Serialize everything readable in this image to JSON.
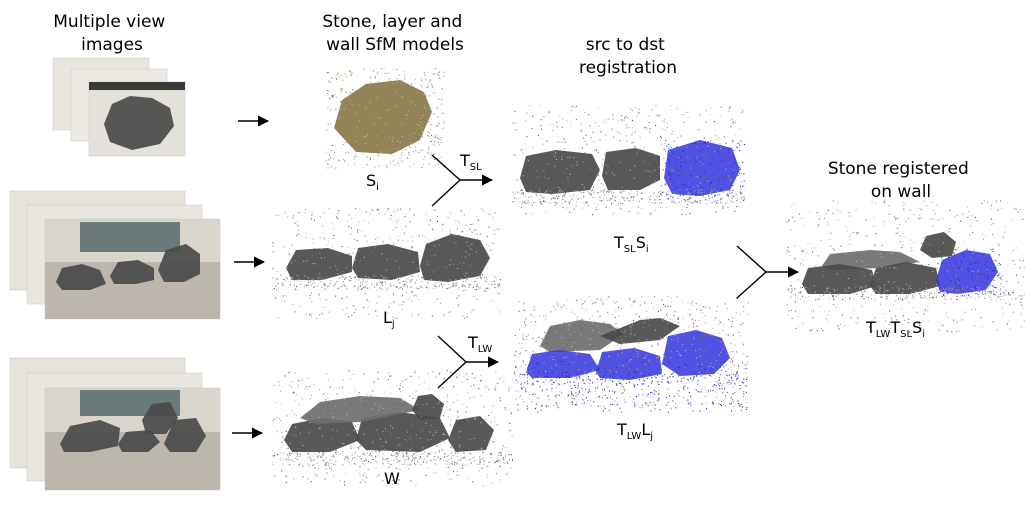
{
  "headers": {
    "images": [
      "Multiple view",
      "images"
    ],
    "models": [
      "Stone, layer and",
      "wall SfM models"
    ],
    "registration": [
      "src to dst",
      "registration"
    ],
    "result": [
      "Stone registered",
      "on wall"
    ]
  },
  "labels": {
    "stone_model": {
      "base": "S",
      "sub": "i"
    },
    "layer_model": {
      "base": "L",
      "sub": "j"
    },
    "wall_model": {
      "base": "W"
    },
    "transform_sl": {
      "base": "T",
      "sub": "SL"
    },
    "transform_lw": {
      "base": "T",
      "sub": "LW"
    },
    "registered_stone": {
      "t": "T",
      "t_sub": "SL",
      "s": "S",
      "s_sub": "i"
    },
    "registered_layer": {
      "t": "T",
      "t_sub": "LW",
      "l": "L",
      "l_sub": "j"
    },
    "final": {
      "t1": "T",
      "t1_sub": "LW",
      "t2": "T",
      "t2_sub": "SL",
      "s": "S",
      "s_sub": "i"
    }
  },
  "colors": {
    "text": "#000000",
    "stone_dark": "#4a4a4a",
    "stone_mid": "#6e6e6e",
    "stone_light": "#9a9a9a",
    "stone_golden": "#8a7a4a",
    "registered_blue": "#3333dd",
    "photo_wall": "#d9d4cc",
    "photo_table": "#bcb6ad"
  }
}
